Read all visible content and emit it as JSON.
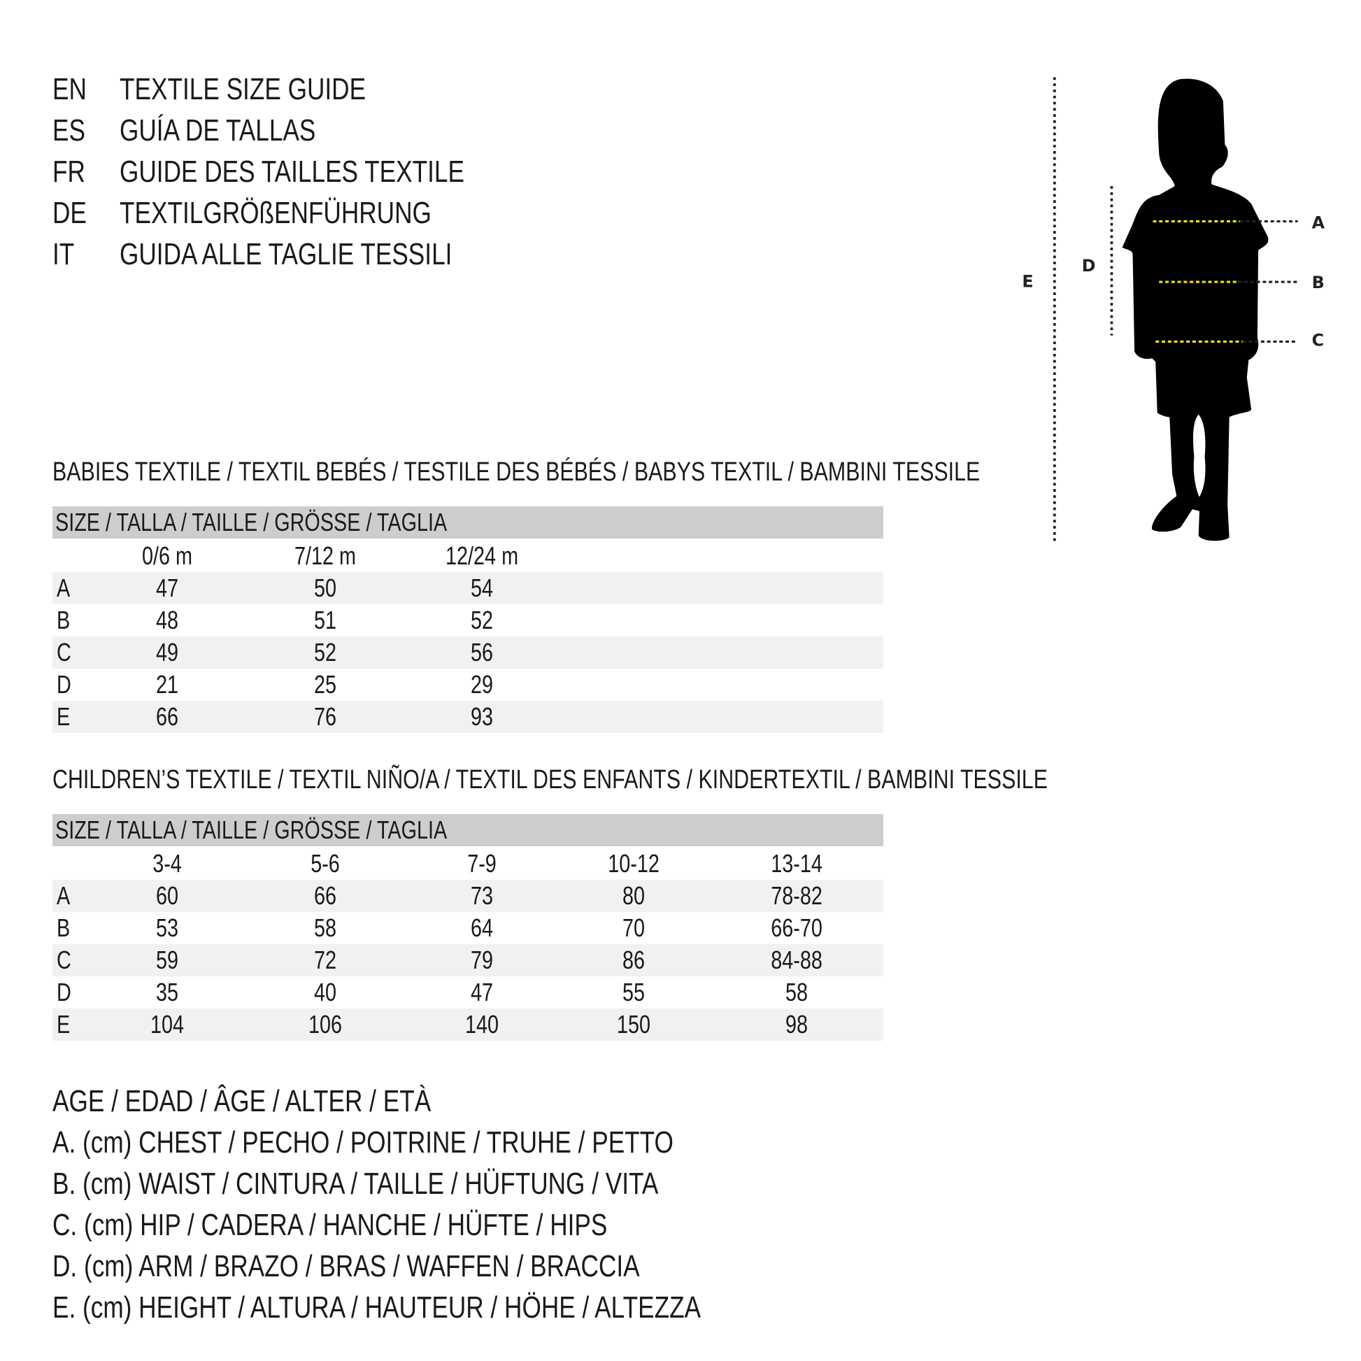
{
  "header": {
    "languages": [
      {
        "code": "EN",
        "title": "TEXTILE SIZE GUIDE"
      },
      {
        "code": "ES",
        "title": "GUÍA DE TALLAS"
      },
      {
        "code": "FR",
        "title": "GUIDE DES TAILLES TEXTILE"
      },
      {
        "code": "DE",
        "title": "TEXTILGRÖßENFÜHRUNG"
      },
      {
        "code": "IT",
        "title": "GUIDA ALLE TAGLIE TESSILI"
      }
    ]
  },
  "babies": {
    "title": "BABIES TEXTILE / TEXTIL BEBÉS / TESTILE DES BÉBÉS / BABYS TEXTIL / BAMBINI TESSILE",
    "size_header": "SIZE / TALLA / TAILLE / GRÖSSE / TAGLIA",
    "sizes": [
      "0/6 m",
      "7/12 m",
      "12/24 m"
    ],
    "rows": [
      {
        "label": "A",
        "values": [
          "47",
          "50",
          "54"
        ]
      },
      {
        "label": "B",
        "values": [
          "48",
          "51",
          "52"
        ]
      },
      {
        "label": "C",
        "values": [
          "49",
          "52",
          "56"
        ]
      },
      {
        "label": "D",
        "values": [
          "21",
          "25",
          "29"
        ]
      },
      {
        "label": "E",
        "values": [
          "66",
          "76",
          "93"
        ]
      }
    ]
  },
  "children": {
    "title": "CHILDREN’S TEXTILE / TEXTIL NIÑO/A / TEXTIL DES ENFANTS / KINDERTEXTIL / BAMBINI TESSILE",
    "size_header": "SIZE / TALLA / TAILLE / GRÖSSE / TAGLIA",
    "sizes": [
      "3-4",
      "5-6",
      "7-9",
      "10-12",
      "13-14"
    ],
    "rows": [
      {
        "label": "A",
        "values": [
          "60",
          "66",
          "73",
          "80",
          "78-82"
        ]
      },
      {
        "label": "B",
        "values": [
          "53",
          "58",
          "64",
          "70",
          "66-70"
        ]
      },
      {
        "label": "C",
        "values": [
          "59",
          "72",
          "79",
          "86",
          "84-88"
        ]
      },
      {
        "label": "D",
        "values": [
          "35",
          "40",
          "47",
          "55",
          "58"
        ]
      },
      {
        "label": "E",
        "values": [
          "104",
          "106",
          "140",
          "150",
          "98"
        ]
      }
    ]
  },
  "legend": [
    "AGE / EDAD / ÂGE / ALTER / ETÀ",
    "A. (cm) CHEST / PECHO / POITRINE / TRUHE / PETTO",
    "B. (cm) WAIST / CINTURA / TAILLE / HÜFTUNG / VITA",
    "C. (cm) HIP / CADERA / HANCHE / HÜFTE / HIPS",
    "D. (cm) ARM / BRAZO / BRAS / WAFFEN / BRACCIA",
    "E. (cm) HEIGHT / ALTURA / HAUTEUR / HÖHE / ALTEZZA"
  ],
  "figure": {
    "labels": {
      "A": "A",
      "B": "B",
      "C": "C",
      "D": "D",
      "E": "E"
    },
    "colors": {
      "silhouette": "#000000",
      "measure_line": "#f2e21a",
      "guide_line": "#222222"
    }
  }
}
